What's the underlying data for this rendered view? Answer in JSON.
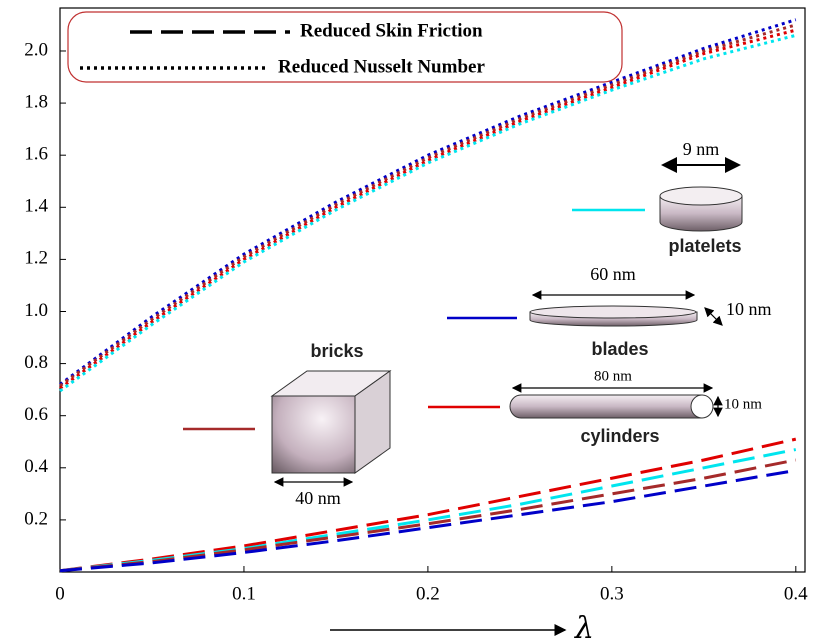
{
  "chart_data": {
    "type": "line",
    "x": [
      0,
      0.05,
      0.1,
      0.15,
      0.2,
      0.25,
      0.3,
      0.35,
      0.4
    ],
    "xlim": [
      0,
      0.405
    ],
    "ylim": [
      0,
      2.165
    ],
    "xticks": [
      0,
      0.1,
      0.2,
      0.3,
      0.4
    ],
    "yticks": [
      0.2,
      0.4,
      0.6,
      0.8,
      {
        "value": 1,
        "label": "1.0"
      },
      1.2,
      1.4,
      1.6,
      1.8,
      {
        "value": 2,
        "label": "2.0"
      }
    ],
    "x_label": "λ",
    "series": [
      {
        "name": "Reduced Skin Friction",
        "dash": "dashed",
        "lines": [
          {
            "color": "#e00000",
            "values": [
              0.005,
              0.05,
              0.1,
              0.16,
              0.22,
              0.29,
              0.36,
              0.43,
              0.51
            ]
          },
          {
            "color": "#00e5ee",
            "values": [
              0.005,
              0.045,
              0.09,
              0.145,
              0.2,
              0.26,
              0.33,
              0.4,
              0.47
            ]
          },
          {
            "color": "#a52a2a",
            "values": [
              0.005,
              0.04,
              0.085,
              0.135,
              0.185,
              0.24,
              0.3,
              0.36,
              0.43
            ]
          },
          {
            "color": "#0000c8",
            "values": [
              0.005,
              0.035,
              0.075,
              0.12,
              0.17,
              0.22,
              0.27,
              0.33,
              0.39
            ]
          }
        ]
      },
      {
        "name": "Reduced Nusselt Number",
        "dash": "dotted",
        "lines": [
          {
            "color": "#0000c8",
            "values": [
              0.72,
              0.98,
              1.22,
              1.42,
              1.6,
              1.75,
              1.88,
              2.01,
              2.12
            ]
          },
          {
            "color": "#a52a2a",
            "values": [
              0.715,
              0.97,
              1.21,
              1.41,
              1.59,
              1.74,
              1.87,
              2.0,
              2.1
            ]
          },
          {
            "color": "#e00000",
            "values": [
              0.705,
              0.96,
              1.2,
              1.4,
              1.58,
              1.73,
              1.86,
              1.99,
              2.08
            ]
          },
          {
            "color": "#00e5ee",
            "values": [
              0.695,
              0.95,
              1.19,
              1.39,
              1.57,
              1.72,
              1.85,
              1.97,
              2.06
            ]
          }
        ]
      }
    ],
    "nanoparticles": [
      {
        "name": "platelets",
        "color": "#00e5ee",
        "sizes": [
          "9 nm"
        ]
      },
      {
        "name": "blades",
        "color": "#0000c8",
        "sizes": [
          "60 nm",
          "10 nm"
        ]
      },
      {
        "name": "bricks",
        "color": "#a52a2a",
        "sizes": [
          "40 nm"
        ]
      },
      {
        "name": "cylinders",
        "color": "#e00000",
        "sizes": [
          "80 nm",
          "10 nm"
        ]
      }
    ]
  }
}
